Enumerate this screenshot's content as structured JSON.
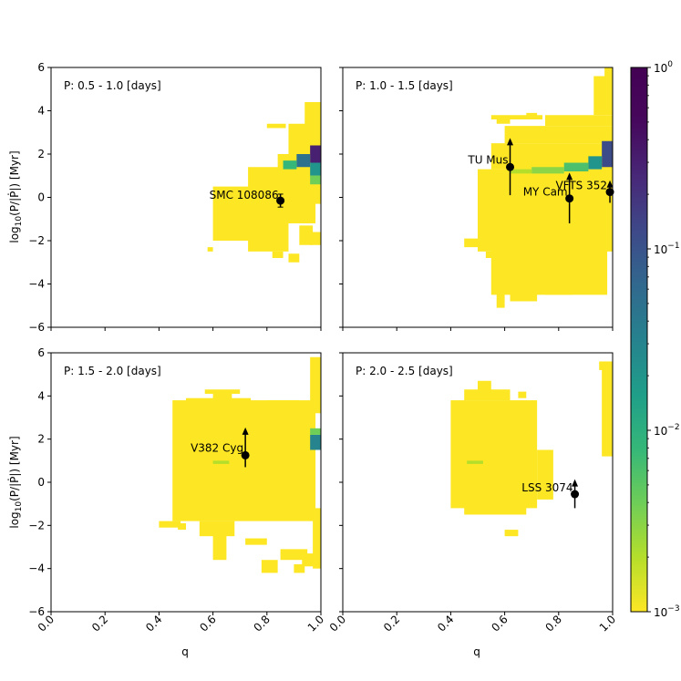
{
  "chart_data": {
    "type": "heatmap",
    "layout": "2x2 grid with shared color bar",
    "xlabel": "q",
    "ylabel": "log$_{10}$(P/|Ṗ|) [Myr]",
    "ylabel_main": "log",
    "ylabel_sub": "10",
    "ylabel_rest": "(P/|Ṗ|) [Myr]",
    "xlim": [
      0.0,
      1.0
    ],
    "ylim": [
      -6,
      6
    ],
    "xticks": [
      0.0,
      0.2,
      0.4,
      0.6,
      0.8,
      1.0
    ],
    "xtick_labels": [
      "0.0",
      "0.2",
      "0.4",
      "0.6",
      "0.8",
      "1.0"
    ],
    "yticks": [
      -6,
      -4,
      -2,
      0,
      2,
      4,
      6
    ],
    "ytick_labels": [
      "−6",
      "−4",
      "−2",
      "0",
      "2",
      "4",
      "6"
    ],
    "colorbar": {
      "scale": "log",
      "colormap": "viridis",
      "vmin": 0.001,
      "vmax": 1,
      "ticks": [
        {
          "value": 1,
          "label": "10",
          "exp": "0"
        },
        {
          "value": 0.1,
          "label": "10",
          "exp": "−1"
        },
        {
          "value": 0.01,
          "label": "10",
          "exp": "−2"
        },
        {
          "value": 0.001,
          "label": "10",
          "exp": "−3"
        }
      ]
    },
    "panels": [
      {
        "title": "P: 0.5 - 1.0 [days]",
        "show_xticklabels": false,
        "show_yticklabels": true,
        "region": [
          [
            0.6,
            -2.0,
            0.75,
            0.5
          ],
          [
            0.73,
            -2.5,
            0.88,
            0.2
          ],
          [
            0.73,
            -1.2,
            0.98,
            1.4
          ],
          [
            0.84,
            -0.3,
            1.0,
            2.0
          ],
          [
            0.88,
            0.8,
            1.0,
            3.4
          ],
          [
            0.94,
            1.8,
            1.0,
            4.4
          ],
          [
            0.92,
            -2.2,
            0.97,
            -1.3
          ],
          [
            0.96,
            -2.2,
            1.0,
            -1.6
          ],
          [
            0.8,
            3.2,
            0.87,
            3.4
          ],
          [
            0.82,
            -2.8,
            0.86,
            -2.5
          ],
          [
            0.75,
            0.2,
            0.8,
            0.5
          ],
          [
            0.58,
            -2.5,
            0.6,
            -2.3
          ],
          [
            0.88,
            -3.0,
            0.92,
            -2.6
          ]
        ],
        "hot": [
          {
            "x": [
              0.96,
              1.0
            ],
            "y": [
              1.6,
              2.4
            ],
            "v": 0.3
          },
          {
            "x": [
              0.91,
              0.96
            ],
            "y": [
              1.4,
              2.0
            ],
            "v": 0.05
          },
          {
            "x": [
              0.86,
              0.91
            ],
            "y": [
              1.3,
              1.7
            ],
            "v": 0.008
          },
          {
            "x": [
              0.96,
              1.0
            ],
            "y": [
              1.0,
              1.6
            ],
            "v": 0.02
          },
          {
            "x": [
              0.96,
              1.0
            ],
            "y": [
              0.6,
              1.0
            ],
            "v": 0.004
          }
        ],
        "points": [
          {
            "label": "SMC 108086",
            "q": 0.85,
            "y": -0.15,
            "yerr_low": 0.3,
            "yerr_high": 0.3,
            "arrow_up": false,
            "anchor": "end",
            "dx": -2,
            "dy": -2
          }
        ]
      },
      {
        "title": "P: 1.0 - 1.5 [days]",
        "show_xticklabels": false,
        "show_yticklabels": false,
        "region": [
          [
            0.5,
            -2.5,
            1.0,
            1.3
          ],
          [
            0.55,
            -4.5,
            0.98,
            -2.3
          ],
          [
            0.57,
            -5.1,
            0.6,
            -4.4
          ],
          [
            0.62,
            -4.8,
            0.72,
            -4.2
          ],
          [
            0.75,
            -4.5,
            0.85,
            -4.0
          ],
          [
            0.45,
            -2.3,
            0.5,
            -1.9
          ],
          [
            0.53,
            -2.8,
            0.58,
            -2.5
          ],
          [
            0.55,
            1.3,
            1.0,
            2.5
          ],
          [
            0.6,
            2.5,
            1.0,
            3.3
          ],
          [
            0.75,
            3.3,
            1.0,
            3.8
          ],
          [
            0.93,
            3.8,
            1.0,
            5.6
          ],
          [
            0.55,
            3.6,
            0.74,
            3.8
          ],
          [
            0.57,
            3.4,
            0.62,
            3.6
          ],
          [
            0.68,
            3.7,
            0.72,
            3.9
          ],
          [
            0.97,
            5.6,
            1.0,
            6.0
          ]
        ],
        "hot": [
          {
            "x": [
              0.96,
              1.0
            ],
            "y": [
              1.4,
              2.6
            ],
            "v": 0.12
          },
          {
            "x": [
              0.91,
              0.96
            ],
            "y": [
              1.3,
              1.9
            ],
            "v": 0.02
          },
          {
            "x": [
              0.82,
              0.91
            ],
            "y": [
              1.2,
              1.6
            ],
            "v": 0.006
          },
          {
            "x": [
              0.7,
              0.82
            ],
            "y": [
              1.1,
              1.4
            ],
            "v": 0.003
          },
          {
            "x": [
              0.62,
              0.7
            ],
            "y": [
              1.1,
              1.3
            ],
            "v": 0.002
          }
        ],
        "points": [
          {
            "label": "TU Mus",
            "q": 0.62,
            "y": 1.4,
            "yerr_low": 1.3,
            "yerr_high": 1.3,
            "arrow_up": true,
            "anchor": "end",
            "dx": -2,
            "dy": -4
          },
          {
            "label": "MY Cam",
            "q": 0.84,
            "y": -0.05,
            "yerr_low": 1.15,
            "yerr_high": 1.15,
            "arrow_up": true,
            "anchor": "end",
            "dx": -2,
            "dy": -3
          },
          {
            "label": "VFTS 352",
            "q": 0.99,
            "y": 0.25,
            "yerr_low": 0.5,
            "yerr_high": 0.5,
            "arrow_up": true,
            "anchor": "end",
            "dx": -3,
            "dy": -3
          }
        ]
      },
      {
        "title": "P: 1.5 - 2.0 [days]",
        "show_xticklabels": true,
        "show_yticklabels": true,
        "region": [
          [
            0.45,
            -1.8,
            0.98,
            3.8
          ],
          [
            0.5,
            3.6,
            0.74,
            3.9
          ],
          [
            0.57,
            4.1,
            0.7,
            4.3
          ],
          [
            0.6,
            3.8,
            0.67,
            4.2
          ],
          [
            0.8,
            3.4,
            0.92,
            3.8
          ],
          [
            0.96,
            3.4,
            1.0,
            5.8
          ],
          [
            0.4,
            -2.1,
            0.48,
            -1.8
          ],
          [
            0.47,
            -2.2,
            0.5,
            -1.9
          ],
          [
            0.55,
            -2.5,
            0.68,
            -1.8
          ],
          [
            0.6,
            -3.6,
            0.65,
            -2.4
          ],
          [
            0.72,
            -2.9,
            0.8,
            -2.6
          ],
          [
            0.78,
            -4.2,
            0.84,
            -3.6
          ],
          [
            0.85,
            -3.6,
            0.95,
            -3.1
          ],
          [
            0.93,
            -3.9,
            0.98,
            -3.3
          ],
          [
            0.9,
            -4.2,
            0.94,
            -3.8
          ],
          [
            0.97,
            -4.0,
            1.0,
            -1.2
          ],
          [
            0.95,
            3.2,
            1.0,
            3.6
          ]
        ],
        "hot": [
          {
            "x": [
              0.96,
              1.0
            ],
            "y": [
              1.5,
              2.2
            ],
            "v": 0.03
          },
          {
            "x": [
              0.96,
              1.0
            ],
            "y": [
              2.2,
              2.5
            ],
            "v": 0.004
          },
          {
            "x": [
              0.6,
              0.66
            ],
            "y": [
              0.85,
              1.0
            ],
            "v": 0.002
          }
        ],
        "points": [
          {
            "label": "V382 Cyg",
            "q": 0.72,
            "y": 1.25,
            "yerr_low": 0.55,
            "yerr_high": 1.25,
            "arrow_up": true,
            "anchor": "end",
            "dx": -2,
            "dy": -4
          }
        ]
      },
      {
        "title": "P: 2.0 - 2.5 [days]",
        "show_xticklabels": true,
        "show_yticklabels": false,
        "region": [
          [
            0.4,
            -1.2,
            0.72,
            3.8
          ],
          [
            0.45,
            -1.5,
            0.68,
            -1.1
          ],
          [
            0.45,
            3.8,
            0.62,
            4.3
          ],
          [
            0.5,
            4.0,
            0.55,
            4.7
          ],
          [
            0.65,
            3.9,
            0.68,
            4.2
          ],
          [
            0.6,
            -2.5,
            0.65,
            -2.2
          ],
          [
            0.72,
            -0.8,
            0.78,
            1.5
          ],
          [
            0.96,
            1.2,
            1.0,
            5.4
          ],
          [
            0.95,
            5.2,
            1.0,
            5.6
          ]
        ],
        "hot": [
          {
            "x": [
              0.46,
              0.52
            ],
            "y": [
              0.85,
              1.0
            ],
            "v": 0.002
          }
        ],
        "points": [
          {
            "label": "LSS 3074",
            "q": 0.86,
            "y": -0.55,
            "yerr_low": 0.65,
            "yerr_high": 0.65,
            "arrow_up": true,
            "anchor": "end",
            "dx": -2,
            "dy": -3
          }
        ]
      }
    ]
  }
}
